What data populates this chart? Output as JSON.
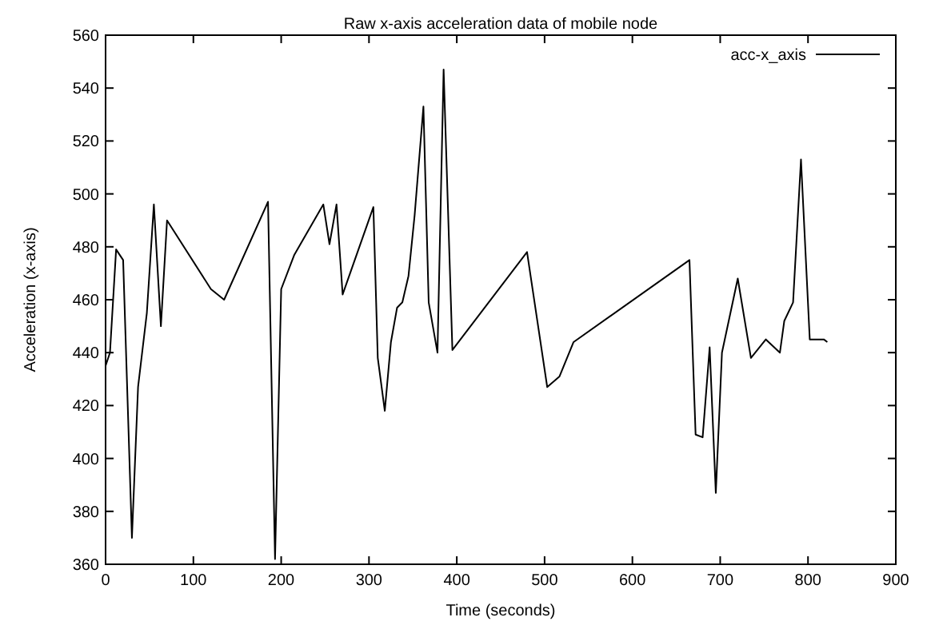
{
  "chart_data": {
    "type": "line",
    "title": "Raw x-axis acceleration data of mobile node",
    "xlabel": "Time (seconds)",
    "ylabel": "Acceleration (x-axis)",
    "xlim": [
      0,
      900
    ],
    "xticks": [
      0,
      100,
      200,
      300,
      400,
      500,
      600,
      700,
      800,
      900
    ],
    "ylim": [
      360,
      560
    ],
    "yticks": [
      360,
      380,
      400,
      420,
      440,
      460,
      480,
      500,
      520,
      540,
      560
    ],
    "grid": false,
    "legend": "top right",
    "series": [
      {
        "name": "acc-x_axis",
        "color": "#000000",
        "x": [
          0,
          5,
          12,
          20,
          30,
          37,
          47,
          55,
          63,
          70,
          120,
          135,
          185,
          193,
          200,
          215,
          248,
          255,
          263,
          270,
          305,
          310,
          318,
          325,
          332,
          338,
          345,
          352,
          362,
          368,
          378,
          385,
          395,
          480,
          503,
          517,
          533,
          665,
          672,
          680,
          688,
          695,
          702,
          720,
          735,
          752,
          768,
          773,
          783,
          792,
          802,
          818,
          822
        ],
        "values": [
          435,
          440,
          479,
          475,
          370,
          427,
          455,
          496,
          450,
          490,
          464,
          460,
          497,
          362,
          464,
          477,
          496,
          481,
          496,
          462,
          495,
          438,
          418,
          444,
          457,
          459,
          469,
          492,
          533,
          459,
          440,
          547,
          441,
          478,
          427,
          431,
          444,
          475,
          409,
          408,
          442,
          387,
          440,
          468,
          438,
          445,
          440,
          452,
          459,
          513,
          445,
          445,
          444
        ]
      }
    ]
  }
}
